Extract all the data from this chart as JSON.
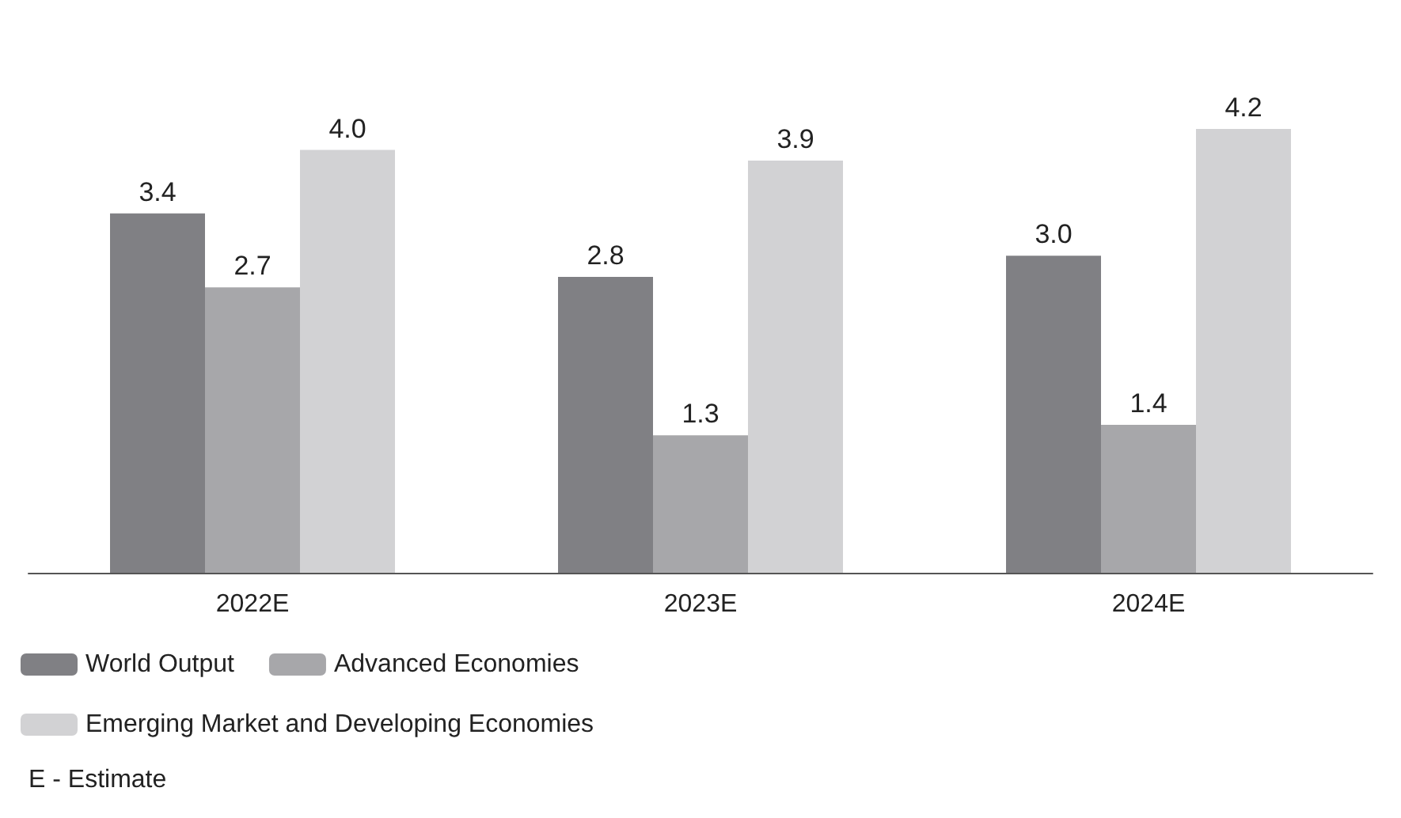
{
  "chart_data": {
    "type": "bar",
    "categories": [
      "2022E",
      "2023E",
      "2024E"
    ],
    "series": [
      {
        "name": "World Output",
        "color": "#808084",
        "values": [
          3.4,
          2.8,
          3.0
        ],
        "value_labels": [
          "3.4",
          "2.8",
          "3.0"
        ]
      },
      {
        "name": "Advanced Economies",
        "color": "#a7a7aa",
        "values": [
          2.7,
          1.3,
          1.4
        ],
        "value_labels": [
          "2.7",
          "1.3",
          "1.4"
        ]
      },
      {
        "name": "Emerging Market and Developing Economies",
        "color": "#d2d2d4",
        "values": [
          4.0,
          3.9,
          4.2
        ],
        "value_labels": [
          "4.0",
          "3.9",
          "4.2"
        ]
      }
    ],
    "tick_labels": "x",
    "legend": "bottom left",
    "annotations": [
      "E - Estimate"
    ]
  }
}
